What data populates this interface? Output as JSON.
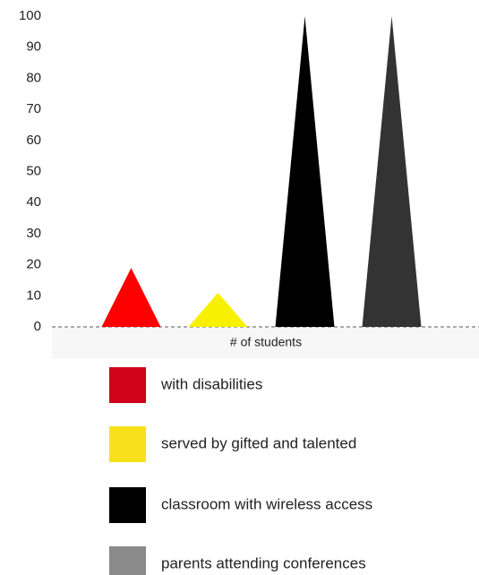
{
  "chart_data": {
    "type": "bar",
    "mark_shape": "triangle",
    "x_label": "# of students",
    "categories": [
      "with disabilities",
      "served by gifted and talented",
      "classroom with wireless access",
      "parents attending conferences"
    ],
    "values": [
      19,
      11,
      100,
      100
    ],
    "colors": [
      "#ff0000",
      "#f7f000",
      "#000000",
      "#333333"
    ],
    "legend_colors": [
      "#d0021b",
      "#f7e11a",
      "#000000",
      "#8a8a8a"
    ],
    "ylim": [
      0,
      100
    ],
    "yticks": [
      0,
      10,
      20,
      30,
      40,
      50,
      60,
      70,
      80,
      90,
      100
    ],
    "grid": false
  }
}
